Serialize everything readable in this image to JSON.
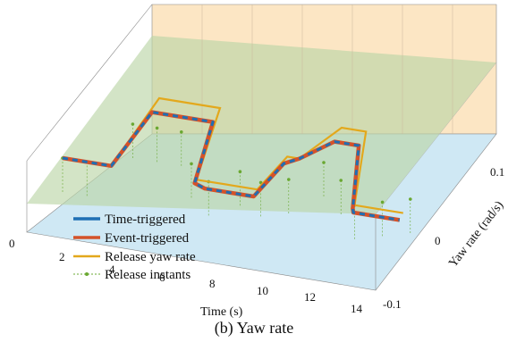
{
  "caption": "(b) Yaw rate",
  "chart_data": {
    "type": "line",
    "title": "",
    "xlabel": "Time (s)",
    "ylabel": "Yaw rate (rad/s)",
    "x_ticks": [
      "0",
      "2",
      "4",
      "6",
      "8",
      "10",
      "12",
      "14"
    ],
    "y_ticks": [
      "-0.1",
      "0",
      "0.1"
    ],
    "xlim": [
      0,
      15
    ],
    "ylim": [
      -0.1,
      0.15
    ],
    "legend": "bottom-left",
    "series": [
      {
        "name": "Time-triggered",
        "color": "#1f6fb4",
        "x": [
          0,
          2,
          2.5,
          4.2,
          5,
          5.5,
          6,
          7,
          8,
          8.5,
          9,
          10,
          11,
          12,
          12.1,
          13,
          14
        ],
        "y": [
          0,
          0,
          0.08,
          0.08,
          0.08,
          -0.005,
          -0.01,
          -0.01,
          -0.01,
          0.04,
          0.05,
          0.08,
          0.08,
          -0.005,
          -0.01,
          -0.01,
          -0.01
        ]
      },
      {
        "name": "Event-triggered",
        "color": "#d4522a",
        "x": [
          0,
          2,
          2.5,
          4.2,
          5,
          5.5,
          6,
          7,
          8,
          8.5,
          9,
          10,
          11,
          12,
          12.1,
          13,
          14
        ],
        "y": [
          0,
          0,
          0.08,
          0.08,
          0.08,
          -0.005,
          -0.01,
          -0.01,
          -0.01,
          0.04,
          0.05,
          0.08,
          0.08,
          -0.005,
          -0.01,
          -0.01,
          -0.01
        ]
      },
      {
        "name": "Release yaw rate",
        "color": "#e3a81c",
        "x": [
          0,
          2,
          2.5,
          4.2,
          5,
          5.5,
          6,
          7,
          8,
          8.5,
          9,
          10,
          11,
          12,
          12.1,
          13,
          14
        ],
        "y": [
          0,
          0,
          0.1,
          0.1,
          0.1,
          0,
          0,
          0,
          0,
          0.05,
          0.05,
          0.1,
          0.1,
          0,
          0,
          0,
          0
        ]
      },
      {
        "name": "Release instants",
        "color": "#6aa832",
        "x": [
          0,
          1,
          2,
          3,
          4,
          5,
          6,
          7,
          8,
          9,
          10,
          11,
          12,
          13,
          14
        ],
        "y": [
          0,
          0,
          0.06,
          0.06,
          0.06,
          0.02,
          0.0,
          0.02,
          0.01,
          0.02,
          0.05,
          0.03,
          0.0,
          0.01,
          0.02
        ]
      }
    ]
  }
}
